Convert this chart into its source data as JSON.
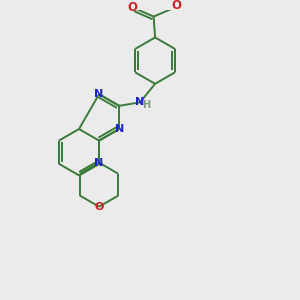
{
  "bg_color": "#ebebeb",
  "bond_color": "#3a7a3a",
  "n_color": "#2222cc",
  "o_color": "#cc2222",
  "h_color": "#7a9a7a",
  "lw": 1.4,
  "figsize": [
    3.0,
    3.0
  ],
  "dpi": 100,
  "xlim": [
    0,
    10
  ],
  "ylim": [
    0,
    10
  ]
}
